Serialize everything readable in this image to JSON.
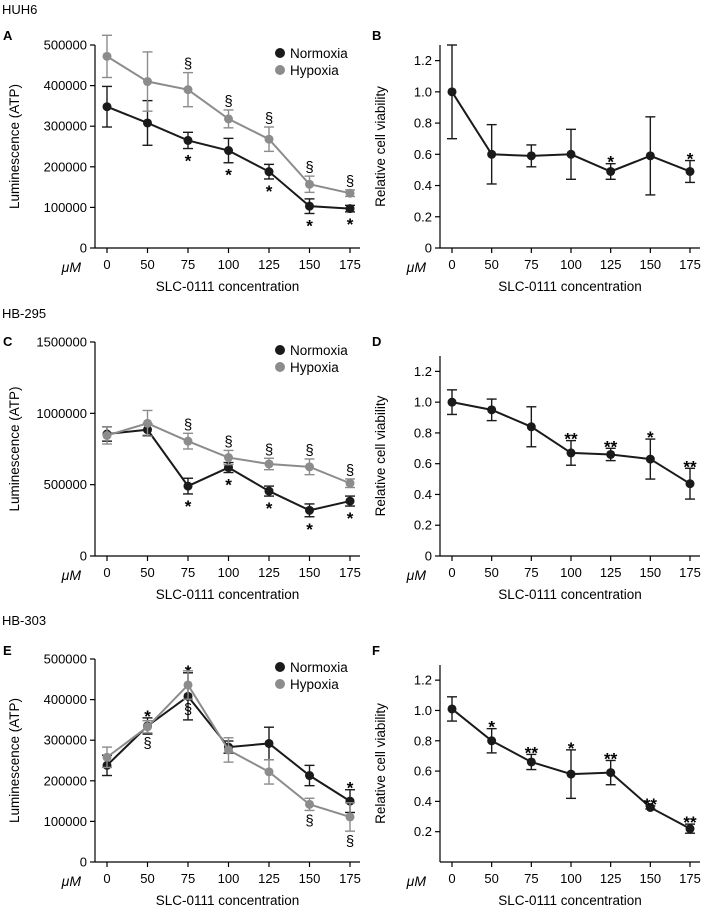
{
  "row_titles": [
    "HUH6",
    "HB-295",
    "HB-303"
  ],
  "colors": {
    "normoxia": "#1a1a1a",
    "hypoxia": "#8c8c8c"
  },
  "chart_data": [
    {
      "panel": "A",
      "type": "line",
      "categories": [
        "0",
        "50",
        "75",
        "100",
        "125",
        "150",
        "175"
      ],
      "xlabel": "SLC-0111 concentration",
      "unit": "μM",
      "ylabel": "Luminescence (ATP)",
      "ylim": [
        0,
        500000
      ],
      "yticks": [
        0,
        100000,
        200000,
        300000,
        400000,
        500000
      ],
      "yticklabels": [
        "0",
        "100000",
        "200000",
        "300000",
        "400000",
        "500000"
      ],
      "legend": [
        "Normoxia",
        "Hypoxia"
      ],
      "legend_position": "top-right",
      "series": [
        {
          "name": "Normoxia",
          "color": "#1a1a1a",
          "values": [
            348000,
            308000,
            265000,
            240000,
            188000,
            103000,
            97000
          ],
          "errors": [
            50000,
            55000,
            20000,
            30000,
            18000,
            18000,
            8000
          ],
          "annotations": [
            "",
            "",
            "*",
            "*",
            "*",
            "*",
            "*"
          ],
          "annotation_side": "below"
        },
        {
          "name": "Hypoxia",
          "color": "#8c8c8c",
          "values": [
            472000,
            410000,
            390000,
            318000,
            268000,
            157000,
            135000
          ],
          "errors": [
            52000,
            73000,
            42000,
            22000,
            30000,
            20000,
            8000
          ],
          "annotations": [
            "",
            "",
            "§",
            "§",
            "§",
            "§",
            "§"
          ],
          "annotation_side": "above"
        }
      ]
    },
    {
      "panel": "B",
      "type": "line",
      "categories": [
        "0",
        "50",
        "75",
        "100",
        "125",
        "150",
        "175"
      ],
      "xlabel": "SLC-0111 concentration",
      "unit": "μM",
      "ylabel": "Relative cell viability",
      "ylim": [
        0,
        1.3
      ],
      "yticks": [
        0,
        0.2,
        0.4,
        0.6,
        0.8,
        1.0,
        1.2
      ],
      "yticklabels": [
        "0",
        "0.2",
        "0.4",
        "0.6",
        "0.8",
        "1.0",
        "1.2"
      ],
      "series": [
        {
          "name": "Relative cell viability",
          "color": "#1a1a1a",
          "values": [
            1.0,
            0.6,
            0.59,
            0.6,
            0.49,
            0.59,
            0.49
          ],
          "errors": [
            0.3,
            0.19,
            0.07,
            0.16,
            0.05,
            0.25,
            0.07
          ],
          "annotations": [
            "",
            "",
            "",
            "",
            "*",
            "",
            "*"
          ],
          "annotation_side": "above"
        }
      ]
    },
    {
      "panel": "C",
      "type": "line",
      "categories": [
        "0",
        "50",
        "75",
        "100",
        "125",
        "150",
        "175"
      ],
      "xlabel": "SLC-0111 concentration",
      "unit": "μM",
      "ylabel": "Luminescence (ATP)",
      "ylim": [
        0,
        1500000
      ],
      "yticks": [
        0,
        500000,
        1000000,
        1500000
      ],
      "yticklabels": [
        "0",
        "500000",
        "1000000",
        "1500000"
      ],
      "legend": [
        "Normoxia",
        "Hypoxia"
      ],
      "legend_position": "top-right",
      "series": [
        {
          "name": "Normoxia",
          "color": "#1a1a1a",
          "values": [
            855000,
            885000,
            490000,
            620000,
            455000,
            320000,
            385000
          ],
          "errors": [
            50000,
            40000,
            55000,
            35000,
            35000,
            45000,
            35000
          ],
          "annotations": [
            "",
            "",
            "*",
            "*",
            "*",
            "*",
            "*"
          ],
          "annotation_side": "below"
        },
        {
          "name": "Hypoxia",
          "color": "#8c8c8c",
          "values": [
            845000,
            930000,
            805000,
            690000,
            645000,
            625000,
            510000
          ],
          "errors": [
            60000,
            90000,
            55000,
            50000,
            40000,
            55000,
            30000
          ],
          "annotations": [
            "",
            "",
            "§",
            "§",
            "§",
            "§",
            "§"
          ],
          "annotation_side": "above"
        }
      ]
    },
    {
      "panel": "D",
      "type": "line",
      "categories": [
        "0",
        "50",
        "75",
        "100",
        "125",
        "150",
        "175"
      ],
      "xlabel": "SLC-0111 concentration",
      "unit": "μM",
      "ylabel": "Relative cell viability",
      "ylim": [
        0,
        1.3
      ],
      "yticks": [
        0,
        0.2,
        0.4,
        0.6,
        0.8,
        1.0,
        1.2
      ],
      "yticklabels": [
        "0",
        "0.2",
        "0.4",
        "0.6",
        "0.8",
        "1.0",
        "1.2"
      ],
      "series": [
        {
          "name": "Relative cell viability",
          "color": "#1a1a1a",
          "values": [
            1.0,
            0.95,
            0.84,
            0.67,
            0.66,
            0.63,
            0.47
          ],
          "errors": [
            0.08,
            0.07,
            0.13,
            0.08,
            0.04,
            0.13,
            0.1
          ],
          "annotations": [
            "",
            "",
            "",
            "**",
            "**",
            "*",
            "**"
          ],
          "annotation_side": "above"
        }
      ]
    },
    {
      "panel": "E",
      "type": "line",
      "categories": [
        "0",
        "50",
        "75",
        "100",
        "125",
        "150",
        "175"
      ],
      "xlabel": "SLC-0111 concentration",
      "unit": "μM",
      "ylabel": "Luminescence (ATP)",
      "ylim": [
        0,
        500000
      ],
      "yticks": [
        0,
        100000,
        200000,
        300000,
        400000,
        500000
      ],
      "yticklabels": [
        "0",
        "100000",
        "200000",
        "300000",
        "400000",
        "500000"
      ],
      "legend": [
        "Normoxia",
        "Hypoxia"
      ],
      "legend_position": "top-right",
      "series": [
        {
          "name": "Normoxia",
          "color": "#1a1a1a",
          "values": [
            238000,
            335000,
            408000,
            283000,
            292000,
            213000,
            150000
          ],
          "errors": [
            25000,
            20000,
            58000,
            15000,
            40000,
            25000,
            28000
          ],
          "annotations": [
            "",
            "*",
            "*",
            "",
            "",
            "",
            "*"
          ],
          "annotation_side": "above"
        },
        {
          "name": "Hypoxia",
          "color": "#8c8c8c",
          "values": [
            258000,
            333000,
            436000,
            276000,
            222000,
            142000,
            111000
          ],
          "errors": [
            25000,
            15000,
            35000,
            30000,
            30000,
            15000,
            35000
          ],
          "annotations": [
            "",
            "§",
            "§",
            "",
            "",
            "§",
            "§"
          ],
          "annotation_side": "below"
        }
      ]
    },
    {
      "panel": "F",
      "type": "line",
      "categories": [
        "0",
        "50",
        "75",
        "100",
        "125",
        "150",
        "175"
      ],
      "xlabel": "SLC-0111 concentration",
      "unit": "μM",
      "ylabel": "Relative cell viability",
      "ylim": [
        0,
        1.3
      ],
      "yticks": [
        0.2,
        0.4,
        0.6,
        0.8,
        1.0,
        1.2
      ],
      "yticklabels": [
        "0.2",
        "0.4",
        "0.6",
        "0.8",
        "1.0",
        "1.2"
      ],
      "series": [
        {
          "name": "Relative cell viability",
          "color": "#1a1a1a",
          "values": [
            1.01,
            0.8,
            0.66,
            0.58,
            0.59,
            0.36,
            0.22
          ],
          "errors": [
            0.08,
            0.08,
            0.05,
            0.16,
            0.08,
            0.01,
            0.03
          ],
          "annotations": [
            "",
            "*",
            "**",
            "*",
            "**",
            "**",
            "**"
          ],
          "annotation_side": "above"
        }
      ]
    }
  ]
}
